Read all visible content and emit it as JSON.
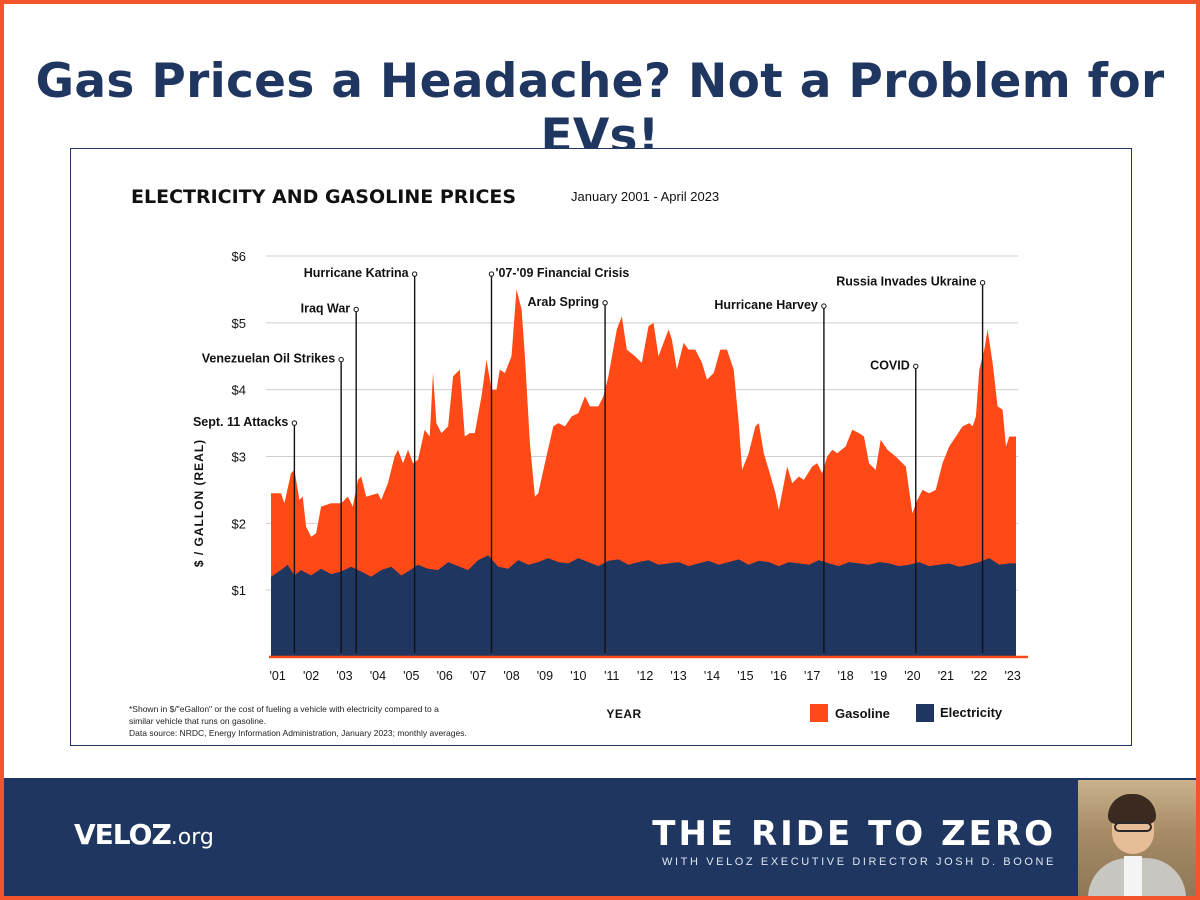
{
  "headline": "Gas Prices a Headache? Not a Problem for EVs!",
  "chart_data": {
    "type": "area",
    "title": "ELECTRICITY AND GASOLINE PRICES",
    "subtitle": "January 2001 - April 2023",
    "ylabel": "$ / GALLON (REAL)",
    "xlabel": "YEAR",
    "ylim": [
      0,
      6
    ],
    "xlim": [
      2001.0,
      2023.3
    ],
    "yticks": [
      {
        "v": 1,
        "label": "$1"
      },
      {
        "v": 2,
        "label": "$2"
      },
      {
        "v": 3,
        "label": "$3"
      },
      {
        "v": 4,
        "label": "$4"
      },
      {
        "v": 5,
        "label": "$5"
      },
      {
        "v": 6,
        "label": "$6"
      }
    ],
    "xticks": [
      {
        "v": 2001.2,
        "label": "'01"
      },
      {
        "v": 2002.2,
        "label": "'02"
      },
      {
        "v": 2003.2,
        "label": "'03"
      },
      {
        "v": 2004.2,
        "label": "'04"
      },
      {
        "v": 2005.2,
        "label": "'05"
      },
      {
        "v": 2006.2,
        "label": "'06"
      },
      {
        "v": 2007.2,
        "label": "'07"
      },
      {
        "v": 2008.2,
        "label": "'08"
      },
      {
        "v": 2009.2,
        "label": "'09"
      },
      {
        "v": 2010.2,
        "label": "'10"
      },
      {
        "v": 2011.2,
        "label": "'11"
      },
      {
        "v": 2012.2,
        "label": "'12"
      },
      {
        "v": 2013.2,
        "label": "'13"
      },
      {
        "v": 2014.2,
        "label": "'14"
      },
      {
        "v": 2015.2,
        "label": "'15"
      },
      {
        "v": 2016.2,
        "label": "'16"
      },
      {
        "v": 2017.2,
        "label": "'17"
      },
      {
        "v": 2018.2,
        "label": "'18"
      },
      {
        "v": 2019.2,
        "label": "'19"
      },
      {
        "v": 2020.2,
        "label": "'20"
      },
      {
        "v": 2021.2,
        "label": "'21"
      },
      {
        "v": 2022.2,
        "label": "'22"
      },
      {
        "v": 2023.2,
        "label": "'23"
      }
    ],
    "legend": [
      {
        "name": "Gasoline",
        "color": "#ff4a17"
      },
      {
        "name": "Electricity",
        "color": "#1f3660"
      }
    ],
    "legend_position": "bottom-right",
    "series": [
      {
        "name": "Gasoline",
        "color": "#ff4a17",
        "points": [
          [
            2001.0,
            2.45
          ],
          [
            2001.3,
            2.45
          ],
          [
            2001.4,
            2.3
          ],
          [
            2001.6,
            2.75
          ],
          [
            2001.7,
            2.8
          ],
          [
            2001.85,
            2.35
          ],
          [
            2001.95,
            2.4
          ],
          [
            2002.05,
            1.95
          ],
          [
            2002.2,
            1.8
          ],
          [
            2002.35,
            1.85
          ],
          [
            2002.5,
            2.25
          ],
          [
            2002.8,
            2.3
          ],
          [
            2003.1,
            2.3
          ],
          [
            2003.3,
            2.4
          ],
          [
            2003.45,
            2.25
          ],
          [
            2003.6,
            2.65
          ],
          [
            2003.7,
            2.7
          ],
          [
            2003.85,
            2.4
          ],
          [
            2004.2,
            2.45
          ],
          [
            2004.3,
            2.35
          ],
          [
            2004.5,
            2.6
          ],
          [
            2004.7,
            3.0
          ],
          [
            2004.8,
            3.1
          ],
          [
            2004.95,
            2.9
          ],
          [
            2005.1,
            3.1
          ],
          [
            2005.25,
            2.9
          ],
          [
            2005.4,
            2.95
          ],
          [
            2005.6,
            3.4
          ],
          [
            2005.75,
            3.3
          ],
          [
            2005.85,
            4.25
          ],
          [
            2005.95,
            3.5
          ],
          [
            2006.1,
            3.35
          ],
          [
            2006.3,
            3.45
          ],
          [
            2006.45,
            4.2
          ],
          [
            2006.65,
            4.3
          ],
          [
            2006.8,
            3.3
          ],
          [
            2006.95,
            3.35
          ],
          [
            2007.1,
            3.35
          ],
          [
            2007.3,
            3.9
          ],
          [
            2007.45,
            4.45
          ],
          [
            2007.6,
            4.0
          ],
          [
            2007.75,
            4.0
          ],
          [
            2007.85,
            4.3
          ],
          [
            2008.0,
            4.25
          ],
          [
            2008.2,
            4.5
          ],
          [
            2008.35,
            5.5
          ],
          [
            2008.5,
            5.2
          ],
          [
            2008.6,
            4.5
          ],
          [
            2008.75,
            3.2
          ],
          [
            2008.9,
            2.4
          ],
          [
            2009.0,
            2.45
          ],
          [
            2009.2,
            2.9
          ],
          [
            2009.45,
            3.45
          ],
          [
            2009.6,
            3.5
          ],
          [
            2009.8,
            3.45
          ],
          [
            2010.0,
            3.6
          ],
          [
            2010.2,
            3.65
          ],
          [
            2010.4,
            3.9
          ],
          [
            2010.55,
            3.75
          ],
          [
            2010.8,
            3.75
          ],
          [
            2010.95,
            3.9
          ],
          [
            2011.1,
            4.2
          ],
          [
            2011.35,
            4.9
          ],
          [
            2011.5,
            5.1
          ],
          [
            2011.65,
            4.6
          ],
          [
            2011.9,
            4.5
          ],
          [
            2012.1,
            4.4
          ],
          [
            2012.3,
            4.95
          ],
          [
            2012.45,
            5.0
          ],
          [
            2012.6,
            4.5
          ],
          [
            2012.75,
            4.7
          ],
          [
            2012.9,
            4.9
          ],
          [
            2013.0,
            4.75
          ],
          [
            2013.15,
            4.3
          ],
          [
            2013.35,
            4.7
          ],
          [
            2013.5,
            4.6
          ],
          [
            2013.7,
            4.6
          ],
          [
            2013.9,
            4.4
          ],
          [
            2014.05,
            4.15
          ],
          [
            2014.25,
            4.25
          ],
          [
            2014.45,
            4.6
          ],
          [
            2014.65,
            4.6
          ],
          [
            2014.85,
            4.3
          ],
          [
            2015.0,
            3.5
          ],
          [
            2015.1,
            2.8
          ],
          [
            2015.3,
            3.05
          ],
          [
            2015.5,
            3.45
          ],
          [
            2015.6,
            3.5
          ],
          [
            2015.75,
            3.05
          ],
          [
            2015.9,
            2.8
          ],
          [
            2016.1,
            2.45
          ],
          [
            2016.2,
            2.2
          ],
          [
            2016.45,
            2.85
          ],
          [
            2016.6,
            2.6
          ],
          [
            2016.8,
            2.7
          ],
          [
            2016.95,
            2.65
          ],
          [
            2017.2,
            2.85
          ],
          [
            2017.35,
            2.9
          ],
          [
            2017.5,
            2.75
          ],
          [
            2017.65,
            3.0
          ],
          [
            2017.8,
            3.1
          ],
          [
            2017.95,
            3.05
          ],
          [
            2018.2,
            3.15
          ],
          [
            2018.4,
            3.4
          ],
          [
            2018.6,
            3.35
          ],
          [
            2018.75,
            3.3
          ],
          [
            2018.9,
            2.9
          ],
          [
            2019.1,
            2.8
          ],
          [
            2019.25,
            3.25
          ],
          [
            2019.45,
            3.1
          ],
          [
            2019.7,
            3.0
          ],
          [
            2019.9,
            2.9
          ],
          [
            2020.0,
            2.85
          ],
          [
            2020.1,
            2.5
          ],
          [
            2020.2,
            2.15
          ],
          [
            2020.35,
            2.35
          ],
          [
            2020.5,
            2.5
          ],
          [
            2020.7,
            2.45
          ],
          [
            2020.9,
            2.5
          ],
          [
            2021.1,
            2.9
          ],
          [
            2021.3,
            3.15
          ],
          [
            2021.5,
            3.3
          ],
          [
            2021.7,
            3.45
          ],
          [
            2021.9,
            3.5
          ],
          [
            2022.0,
            3.45
          ],
          [
            2022.1,
            3.6
          ],
          [
            2022.2,
            4.3
          ],
          [
            2022.35,
            4.6
          ],
          [
            2022.45,
            4.9
          ],
          [
            2022.6,
            4.4
          ],
          [
            2022.75,
            3.75
          ],
          [
            2022.9,
            3.7
          ],
          [
            2023.0,
            3.15
          ],
          [
            2023.1,
            3.3
          ],
          [
            2023.3,
            3.3
          ]
        ]
      },
      {
        "name": "Electricity",
        "color": "#1f3660",
        "points": [
          [
            2001.0,
            1.2
          ],
          [
            2001.3,
            1.3
          ],
          [
            2001.5,
            1.38
          ],
          [
            2001.7,
            1.22
          ],
          [
            2001.9,
            1.3
          ],
          [
            2002.2,
            1.22
          ],
          [
            2002.5,
            1.32
          ],
          [
            2002.8,
            1.24
          ],
          [
            2003.1,
            1.28
          ],
          [
            2003.4,
            1.35
          ],
          [
            2003.7,
            1.28
          ],
          [
            2004.0,
            1.2
          ],
          [
            2004.3,
            1.3
          ],
          [
            2004.6,
            1.35
          ],
          [
            2004.9,
            1.22
          ],
          [
            2005.1,
            1.28
          ],
          [
            2005.4,
            1.38
          ],
          [
            2005.7,
            1.32
          ],
          [
            2006.0,
            1.3
          ],
          [
            2006.3,
            1.42
          ],
          [
            2006.6,
            1.36
          ],
          [
            2006.9,
            1.3
          ],
          [
            2007.2,
            1.45
          ],
          [
            2007.5,
            1.52
          ],
          [
            2007.8,
            1.35
          ],
          [
            2008.1,
            1.32
          ],
          [
            2008.4,
            1.45
          ],
          [
            2008.7,
            1.38
          ],
          [
            2009.0,
            1.42
          ],
          [
            2009.3,
            1.48
          ],
          [
            2009.6,
            1.42
          ],
          [
            2009.9,
            1.4
          ],
          [
            2010.2,
            1.48
          ],
          [
            2010.5,
            1.42
          ],
          [
            2010.8,
            1.36
          ],
          [
            2011.1,
            1.44
          ],
          [
            2011.4,
            1.46
          ],
          [
            2011.7,
            1.38
          ],
          [
            2012.0,
            1.42
          ],
          [
            2012.3,
            1.45
          ],
          [
            2012.6,
            1.38
          ],
          [
            2012.9,
            1.4
          ],
          [
            2013.2,
            1.42
          ],
          [
            2013.5,
            1.36
          ],
          [
            2013.8,
            1.4
          ],
          [
            2014.1,
            1.44
          ],
          [
            2014.4,
            1.38
          ],
          [
            2014.7,
            1.42
          ],
          [
            2015.0,
            1.46
          ],
          [
            2015.3,
            1.38
          ],
          [
            2015.6,
            1.44
          ],
          [
            2015.9,
            1.42
          ],
          [
            2016.2,
            1.36
          ],
          [
            2016.5,
            1.42
          ],
          [
            2016.8,
            1.4
          ],
          [
            2017.1,
            1.38
          ],
          [
            2017.4,
            1.45
          ],
          [
            2017.7,
            1.4
          ],
          [
            2018.0,
            1.36
          ],
          [
            2018.3,
            1.42
          ],
          [
            2018.6,
            1.4
          ],
          [
            2018.9,
            1.38
          ],
          [
            2019.2,
            1.42
          ],
          [
            2019.5,
            1.4
          ],
          [
            2019.8,
            1.36
          ],
          [
            2020.1,
            1.38
          ],
          [
            2020.4,
            1.42
          ],
          [
            2020.7,
            1.36
          ],
          [
            2021.0,
            1.38
          ],
          [
            2021.3,
            1.4
          ],
          [
            2021.6,
            1.35
          ],
          [
            2021.9,
            1.38
          ],
          [
            2022.2,
            1.42
          ],
          [
            2022.5,
            1.48
          ],
          [
            2022.8,
            1.38
          ],
          [
            2023.1,
            1.4
          ],
          [
            2023.3,
            1.4
          ]
        ]
      }
    ],
    "annotations": [
      {
        "label": "Sept. 11 Attacks",
        "x": 2001.7,
        "y": 3.5,
        "side": "left"
      },
      {
        "label": "Venezuelan Oil Strikes",
        "x": 2003.1,
        "y": 4.45,
        "side": "left"
      },
      {
        "label": "Iraq War",
        "x": 2003.55,
        "y": 5.2,
        "side": "left"
      },
      {
        "label": "Hurricane Katrina",
        "x": 2005.3,
        "y": 5.73,
        "side": "left"
      },
      {
        "label": "'07-'09 Financial Crisis",
        "x": 2007.6,
        "y": 5.73,
        "side": "right"
      },
      {
        "label": "Arab Spring",
        "x": 2011.0,
        "y": 5.3,
        "side": "left"
      },
      {
        "label": "Hurricane Harvey",
        "x": 2017.55,
        "y": 5.25,
        "side": "left"
      },
      {
        "label": "COVID",
        "x": 2020.3,
        "y": 4.35,
        "side": "left"
      },
      {
        "label": "Russia Invades Ukraine",
        "x": 2022.3,
        "y": 5.6,
        "side": "left"
      }
    ],
    "footnote": [
      "*Shown in $/\"eGallon\" or the cost of fueling a vehicle with electricity compared to a",
      "similar vehicle that runs on gasoline.",
      "Data source: NRDC, Energy Information Administration, January 2023; monthly averages."
    ]
  },
  "footer": {
    "logo_main": "VELOZ",
    "logo_suffix": ".org",
    "show_title": "THE RIDE TO ZERO",
    "show_subtitle": "WITH VELOZ EXECUTIVE DIRECTOR JOSH D. BOONE"
  }
}
